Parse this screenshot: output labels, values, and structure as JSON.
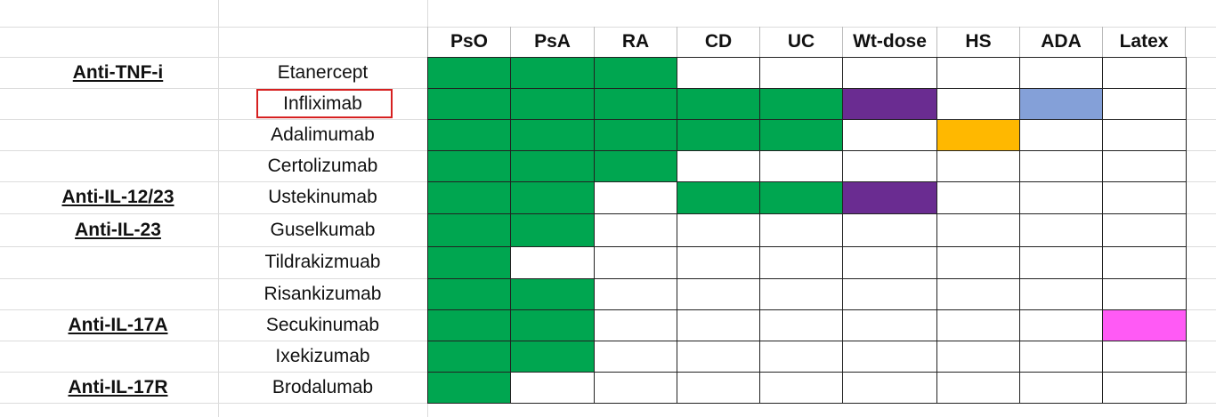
{
  "table": {
    "columns": [
      "PsO",
      "PsA",
      "RA",
      "CD",
      "UC",
      "Wt-dose",
      "HS",
      "ADA",
      "Latex"
    ],
    "rows": [
      {
        "class": "Anti-TNF-i",
        "drug": "Etanercept",
        "cells": [
          "#00a650",
          "#00a650",
          "#00a650",
          null,
          null,
          null,
          null,
          null,
          null
        ]
      },
      {
        "drug": "Infliximab",
        "highlighted": true,
        "cells": [
          "#00a650",
          "#00a650",
          "#00a650",
          "#00a650",
          "#00a650",
          "#6a2c91",
          null,
          "#84a0d8",
          null
        ]
      },
      {
        "drug": "Adalimumab",
        "cells": [
          "#00a650",
          "#00a650",
          "#00a650",
          "#00a650",
          "#00a650",
          null,
          "#ffb800",
          null,
          null
        ]
      },
      {
        "drug": "Certolizumab",
        "cells": [
          "#00a650",
          "#00a650",
          "#00a650",
          null,
          null,
          null,
          null,
          null,
          null
        ]
      },
      {
        "class": "Anti-IL-12/23",
        "drug": "Ustekinumab",
        "cells": [
          "#00a650",
          "#00a650",
          null,
          "#00a650",
          "#00a650",
          "#6a2c91",
          null,
          null,
          null
        ]
      },
      {
        "class": "Anti-IL-23",
        "drug": "Guselkumab",
        "cells": [
          "#00a650",
          "#00a650",
          null,
          null,
          null,
          null,
          null,
          null,
          null
        ]
      },
      {
        "drug": "Tildrakizmuab",
        "cells": [
          "#00a650",
          null,
          null,
          null,
          null,
          null,
          null,
          null,
          null
        ]
      },
      {
        "drug": "Risankizumab",
        "cells": [
          "#00a650",
          "#00a650",
          null,
          null,
          null,
          null,
          null,
          null,
          null
        ]
      },
      {
        "class": "Anti-IL-17A",
        "drug": "Secukinumab",
        "cells": [
          "#00a650",
          "#00a650",
          null,
          null,
          null,
          null,
          null,
          null,
          "#ff5af5"
        ]
      },
      {
        "drug": "Ixekizumab",
        "cells": [
          "#00a650",
          "#00a650",
          null,
          null,
          null,
          null,
          null,
          null,
          null
        ]
      },
      {
        "class": "Anti-IL-17R",
        "drug": "Brodalumab",
        "cells": [
          "#00a650",
          null,
          null,
          null,
          null,
          null,
          null,
          null,
          null
        ]
      }
    ]
  }
}
